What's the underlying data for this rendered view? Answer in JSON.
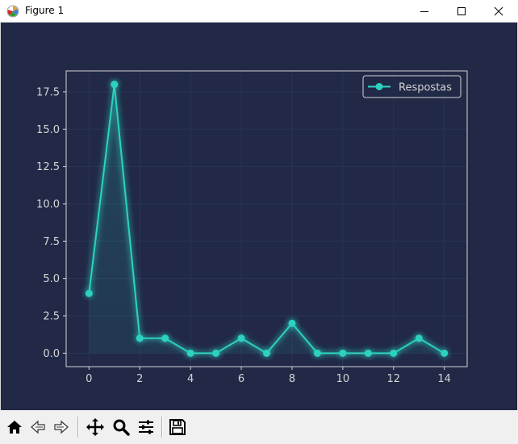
{
  "window": {
    "title": "Figure 1",
    "controls": {
      "minimize": "minimize-icon",
      "maximize": "maximize-icon",
      "close": "close-icon"
    }
  },
  "theme": {
    "background": "#212946",
    "line_color": "#2CD2BF",
    "tick_color": "#D4D4D4",
    "grid_color": "#2A3459"
  },
  "toolbar": {
    "buttons": [
      "home-icon",
      "back-icon",
      "forward-icon",
      "pan-icon",
      "zoom-icon",
      "subplots-icon",
      "save-icon"
    ]
  },
  "chart_data": {
    "type": "line",
    "title": "",
    "xlabel": "",
    "ylabel": "",
    "x": [
      0,
      1,
      2,
      3,
      4,
      5,
      6,
      7,
      8,
      9,
      10,
      11,
      12,
      13,
      14
    ],
    "series": [
      {
        "name": "Respostas",
        "values": [
          4,
          18,
          1,
          1,
          0,
          0,
          1,
          0,
          2,
          0,
          0,
          0,
          0,
          1,
          0
        ],
        "marker": "circle",
        "glow": true,
        "area_fill": true
      }
    ],
    "xlim": [
      -0.9,
      14.9
    ],
    "ylim": [
      -0.9,
      18.9
    ],
    "xticks": [
      0,
      2,
      4,
      6,
      8,
      10,
      12,
      14
    ],
    "xtick_labels": [
      "0",
      "2",
      "4",
      "6",
      "8",
      "10",
      "12",
      "14"
    ],
    "yticks": [
      0,
      2.5,
      5,
      7.5,
      10,
      12.5,
      15,
      17.5
    ],
    "ytick_labels": [
      "0.0",
      "2.5",
      "5.0",
      "7.5",
      "10.0",
      "12.5",
      "15.0",
      "17.5"
    ],
    "grid": true,
    "legend": {
      "position": "upper-right",
      "entries": [
        "Respostas"
      ]
    }
  }
}
